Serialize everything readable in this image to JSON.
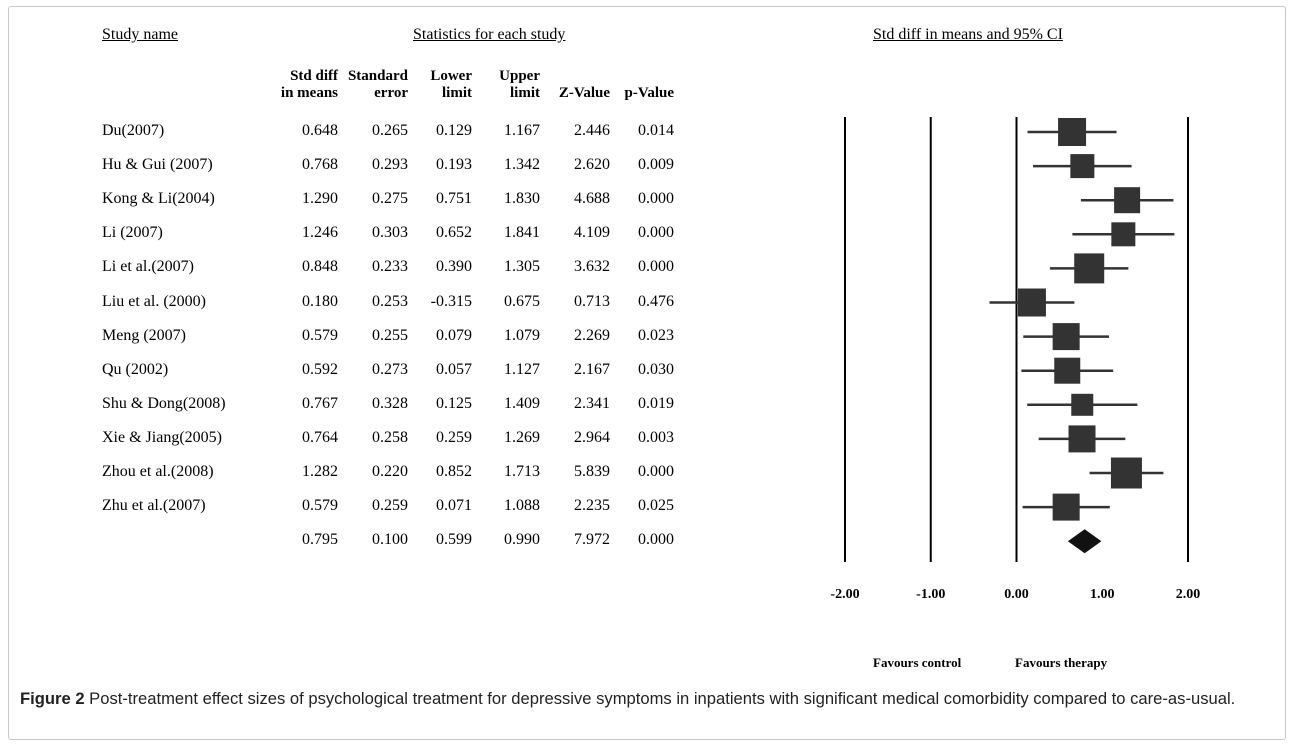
{
  "headers": {
    "study_name": "Study name",
    "statistics": "Statistics for each study",
    "plot": "Std diff in means and 95% CI"
  },
  "columns": [
    [
      "Std diff",
      "in means"
    ],
    [
      "Standard",
      "error"
    ],
    [
      "Lower",
      "limit"
    ],
    [
      "Upper",
      "limit"
    ],
    [
      "",
      "Z-Value"
    ],
    [
      "",
      "p-Value"
    ]
  ],
  "chart_data": {
    "type": "forest",
    "xlim": [
      -2,
      2
    ],
    "x_ticks": [
      "-2.00",
      "-1.00",
      "0.00",
      "1.00",
      "2.00"
    ],
    "reference_lines": [
      -2,
      -1,
      0,
      2
    ],
    "favours_left": "Favours control",
    "favours_right": "Favours therapy",
    "studies": [
      {
        "name": "Du(2007)",
        "std_diff": "0.648",
        "se": "0.265",
        "lower": "0.129",
        "upper": "1.167",
        "z": "2.446",
        "p": "0.014",
        "weight": 28
      },
      {
        "name": "Hu & Gui (2007)",
        "std_diff": "0.768",
        "se": "0.293",
        "lower": "0.193",
        "upper": "1.342",
        "z": "2.620",
        "p": "0.009",
        "weight": 24
      },
      {
        "name": "Kong & Li(2004)",
        "std_diff": "1.290",
        "se": "0.275",
        "lower": "0.751",
        "upper": "1.830",
        "z": "4.688",
        "p": "0.000",
        "weight": 26
      },
      {
        "name": "Li (2007)",
        "std_diff": "1.246",
        "se": "0.303",
        "lower": "0.652",
        "upper": "1.841",
        "z": "4.109",
        "p": "0.000",
        "weight": 24
      },
      {
        "name": "Li et al.(2007)",
        "std_diff": "0.848",
        "se": "0.233",
        "lower": "0.390",
        "upper": "1.305",
        "z": "3.632",
        "p": "0.000",
        "weight": 30
      },
      {
        "name": "Liu et al. (2000)",
        "std_diff": "0.180",
        "se": "0.253",
        "lower": "-0.315",
        "upper": "0.675",
        "z": "0.713",
        "p": "0.476",
        "weight": 28
      },
      {
        "name": "Meng (2007)",
        "std_diff": "0.579",
        "se": "0.255",
        "lower": "0.079",
        "upper": "1.079",
        "z": "2.269",
        "p": "0.023",
        "weight": 27
      },
      {
        "name": "Qu (2002)",
        "std_diff": "0.592",
        "se": "0.273",
        "lower": "0.057",
        "upper": "1.127",
        "z": "2.167",
        "p": "0.030",
        "weight": 26
      },
      {
        "name": "Shu & Dong(2008)",
        "std_diff": "0.767",
        "se": "0.328",
        "lower": "0.125",
        "upper": "1.409",
        "z": "2.341",
        "p": "0.019",
        "weight": 22
      },
      {
        "name": "Xie & Jiang(2005)",
        "std_diff": "0.764",
        "se": "0.258",
        "lower": "0.259",
        "upper": "1.269",
        "z": "2.964",
        "p": "0.003",
        "weight": 27
      },
      {
        "name": "Zhou et al.(2008)",
        "std_diff": "1.282",
        "se": "0.220",
        "lower": "0.852",
        "upper": "1.713",
        "z": "5.839",
        "p": "0.000",
        "weight": 31
      },
      {
        "name": "Zhu et al.(2007)",
        "std_diff": "0.579",
        "se": "0.259",
        "lower": "0.071",
        "upper": "1.088",
        "z": "2.235",
        "p": "0.025",
        "weight": 27
      }
    ],
    "summary": {
      "name": "",
      "std_diff": "0.795",
      "se": "0.100",
      "lower": "0.599",
      "upper": "0.990",
      "z": "7.972",
      "p": "0.000"
    },
    "marker_color": "#333333"
  },
  "caption": {
    "label": "Figure 2",
    "text": " Post-treatment effect sizes of psychological treatment for depressive symptoms in inpatients with significant medical comorbidity compared to care-as-usual",
    "end": "."
  }
}
